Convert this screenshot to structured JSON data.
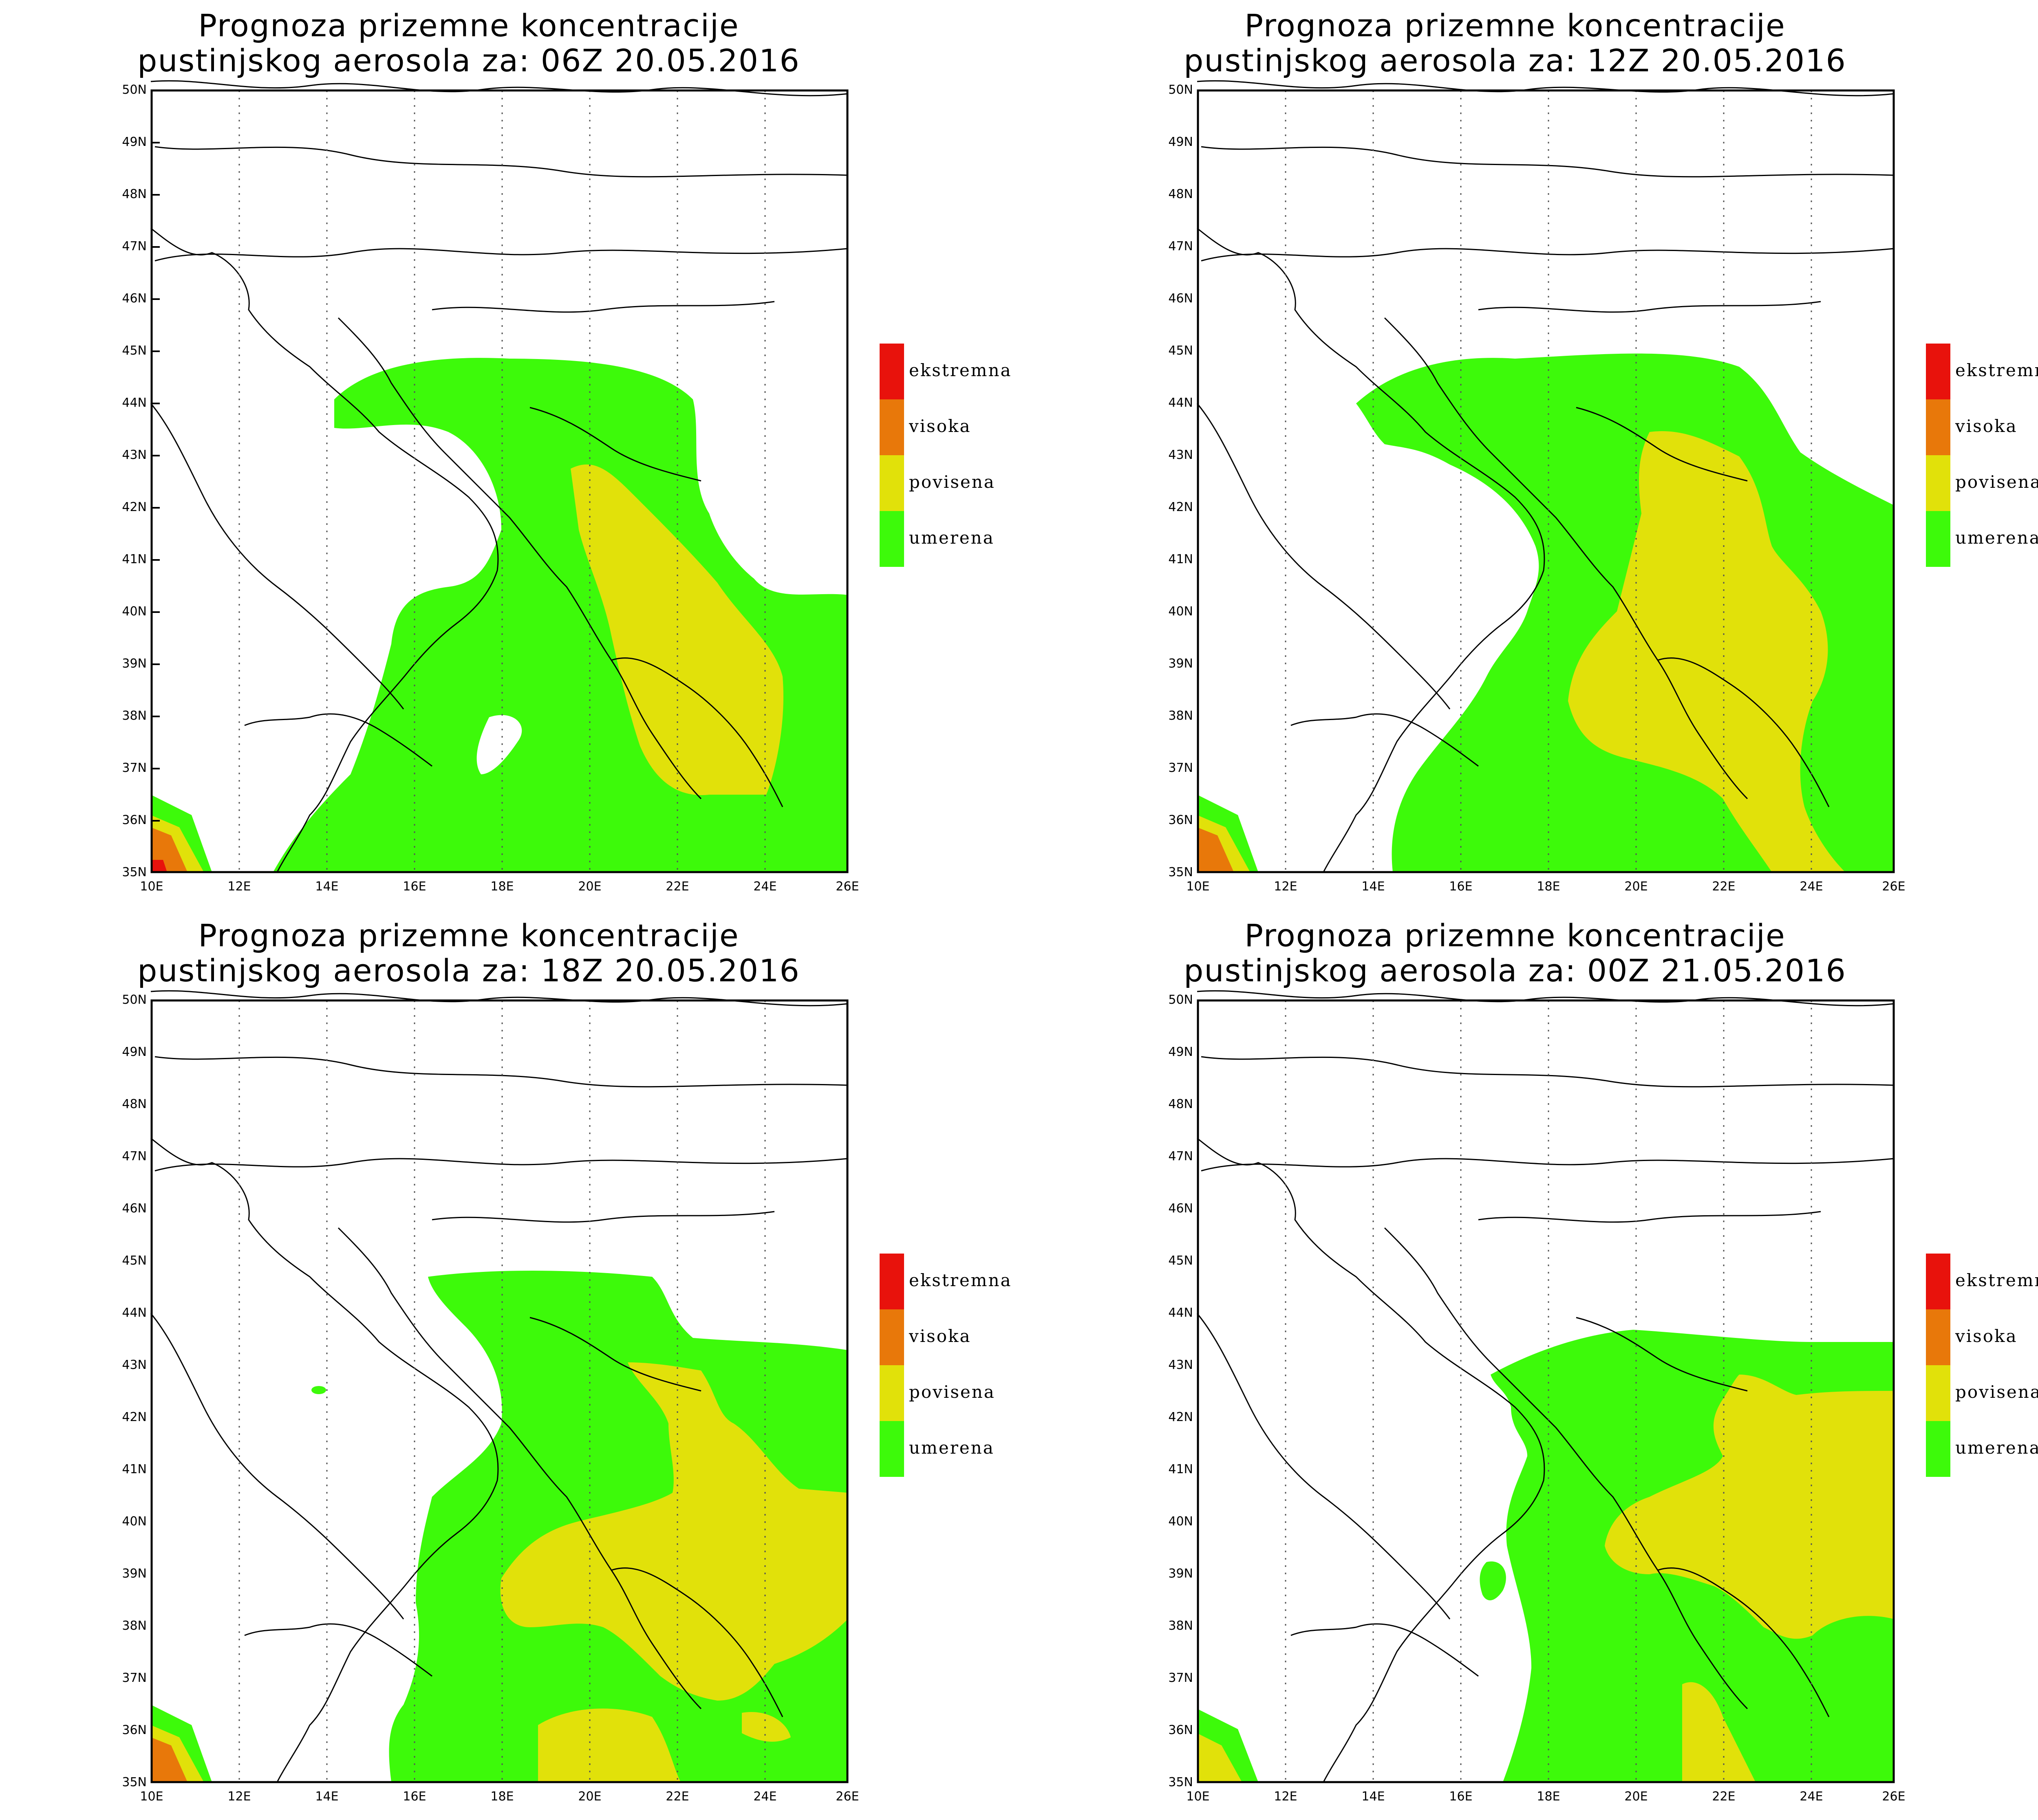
{
  "panels": [
    {
      "title_line1": "Prognoza prizemne koncentracije",
      "title_line2": "pustinjskog aerosola za: 06Z 20.05.2016"
    },
    {
      "title_line1": "Prognoza prizemne koncentracije",
      "title_line2": "pustinjskog aerosola za: 12Z 20.05.2016"
    },
    {
      "title_line1": "Prognoza prizemne koncentracije",
      "title_line2": "pustinjskog aerosola za: 18Z 20.05.2016"
    },
    {
      "title_line1": "Prognoza prizemne koncentracije",
      "title_line2": "pustinjskog aerosola za: 00Z 21.05.2016"
    }
  ],
  "legend": [
    {
      "label": "ekstremna",
      "color": "#e8120c"
    },
    {
      "label": "visoka",
      "color": "#e8780a"
    },
    {
      "label": "povisena",
      "color": "#e1e10a"
    },
    {
      "label": "umerena",
      "color": "#3dfa0a"
    }
  ],
  "axes": {
    "lon_labels": [
      "10E",
      "12E",
      "14E",
      "16E",
      "18E",
      "20E",
      "22E",
      "24E",
      "26E"
    ],
    "lat_labels": [
      "35N",
      "36N",
      "37N",
      "38N",
      "39N",
      "40N",
      "41N",
      "42N",
      "43N",
      "44N",
      "45N",
      "46N",
      "47N",
      "48N",
      "49N",
      "50N"
    ],
    "lon_range": [
      10,
      26
    ],
    "lat_range": [
      35,
      50
    ]
  }
}
